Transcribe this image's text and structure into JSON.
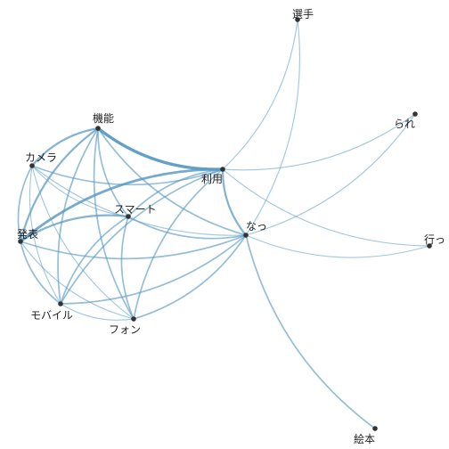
{
  "diagram": {
    "type": "co-occurrence network",
    "edge_color": "#5b9bc4",
    "node_color": "#333333",
    "label_color": "#222222",
    "nodes": [
      {
        "id": "kinou",
        "label": "機能"
      },
      {
        "id": "camera",
        "label": "カメラ"
      },
      {
        "id": "riyou",
        "label": "利用"
      },
      {
        "id": "smart",
        "label": "スマート"
      },
      {
        "id": "happyou",
        "label": "発表"
      },
      {
        "id": "natsu",
        "label": "なっ"
      },
      {
        "id": "mobile",
        "label": "モバイル"
      },
      {
        "id": "phone",
        "label": "フォン"
      },
      {
        "id": "senshu",
        "label": "選手"
      },
      {
        "id": "rare",
        "label": "られ"
      },
      {
        "id": "iku",
        "label": "行っ"
      },
      {
        "id": "ehon",
        "label": "絵本"
      }
    ],
    "edges": [
      {
        "source": "kinou",
        "target": "riyou",
        "weight": 5
      },
      {
        "source": "kinou",
        "target": "happyou",
        "weight": 3
      },
      {
        "source": "kinou",
        "target": "camera",
        "weight": 3
      },
      {
        "source": "kinou",
        "target": "mobile",
        "weight": 2
      },
      {
        "source": "kinou",
        "target": "phone",
        "weight": 2
      },
      {
        "source": "kinou",
        "target": "smart",
        "weight": 2
      },
      {
        "source": "kinou",
        "target": "natsu",
        "weight": 2
      },
      {
        "source": "camera",
        "target": "riyou",
        "weight": 2
      },
      {
        "source": "camera",
        "target": "happyou",
        "weight": 2
      },
      {
        "source": "camera",
        "target": "smart",
        "weight": 1
      },
      {
        "source": "camera",
        "target": "natsu",
        "weight": 1
      },
      {
        "source": "camera",
        "target": "mobile",
        "weight": 1
      },
      {
        "source": "camera",
        "target": "phone",
        "weight": 1
      },
      {
        "source": "riyou",
        "target": "happyou",
        "weight": 4
      },
      {
        "source": "riyou",
        "target": "smart",
        "weight": 2
      },
      {
        "source": "riyou",
        "target": "natsu",
        "weight": 3
      },
      {
        "source": "riyou",
        "target": "mobile",
        "weight": 2
      },
      {
        "source": "riyou",
        "target": "phone",
        "weight": 2
      },
      {
        "source": "riyou",
        "target": "senshu",
        "weight": 1
      },
      {
        "source": "riyou",
        "target": "rare",
        "weight": 1
      },
      {
        "source": "riyou",
        "target": "iku",
        "weight": 1
      },
      {
        "source": "smart",
        "target": "happyou",
        "weight": 3
      },
      {
        "source": "smart",
        "target": "natsu",
        "weight": 2
      },
      {
        "source": "smart",
        "target": "mobile",
        "weight": 2
      },
      {
        "source": "smart",
        "target": "phone",
        "weight": 2
      },
      {
        "source": "happyou",
        "target": "natsu",
        "weight": 2
      },
      {
        "source": "happyou",
        "target": "mobile",
        "weight": 2
      },
      {
        "source": "happyou",
        "target": "phone",
        "weight": 1
      },
      {
        "source": "mobile",
        "target": "natsu",
        "weight": 2
      },
      {
        "source": "mobile",
        "target": "phone",
        "weight": 1
      },
      {
        "source": "phone",
        "target": "natsu",
        "weight": 2
      },
      {
        "source": "natsu",
        "target": "senshu",
        "weight": 1
      },
      {
        "source": "natsu",
        "target": "rare",
        "weight": 1
      },
      {
        "source": "natsu",
        "target": "iku",
        "weight": 1
      },
      {
        "source": "natsu",
        "target": "ehon",
        "weight": 2
      }
    ]
  }
}
